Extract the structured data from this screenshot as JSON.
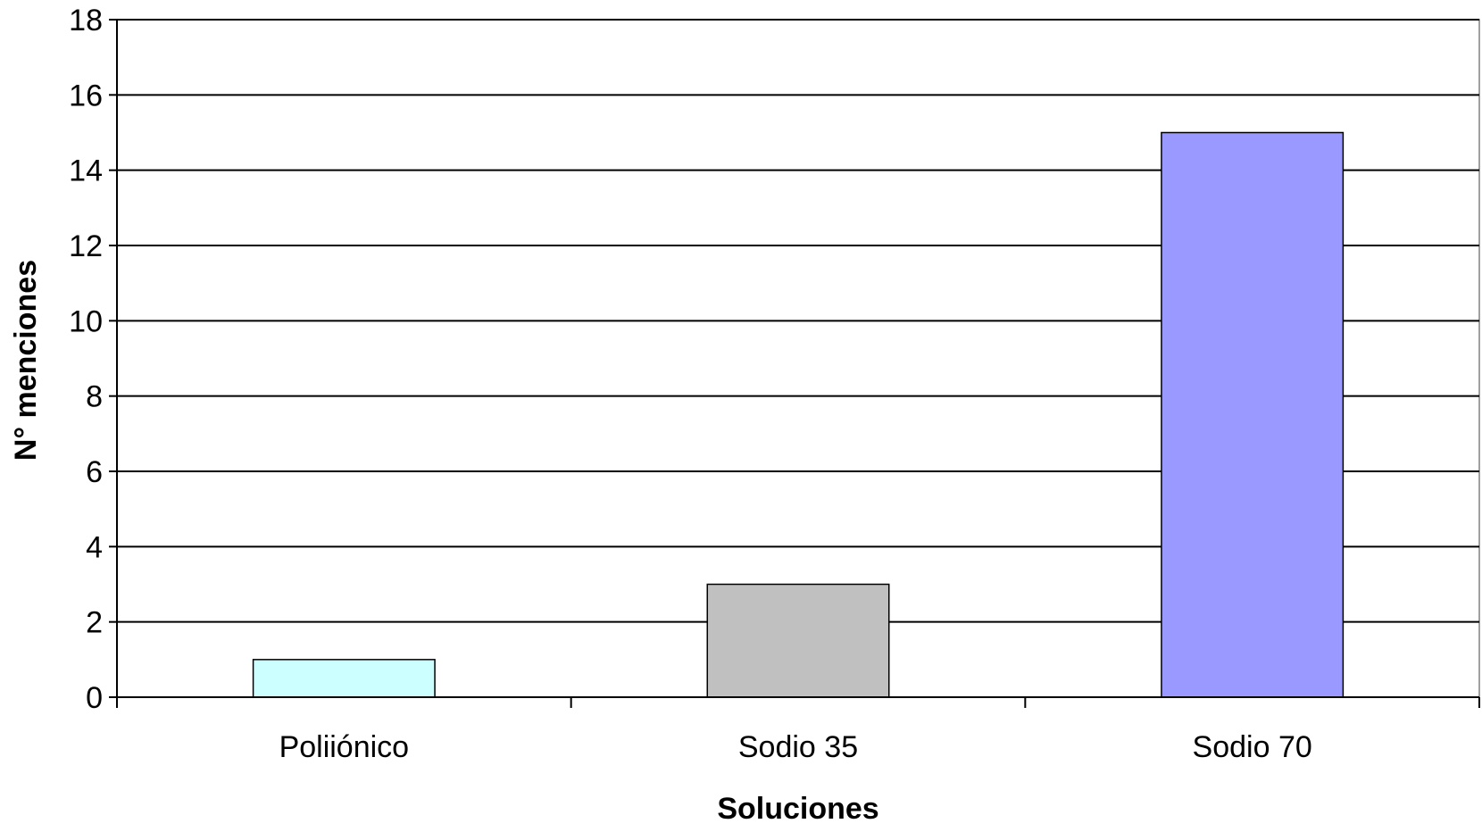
{
  "chart_data": {
    "type": "bar",
    "title": "",
    "xlabel": "Soluciones",
    "ylabel": "N° menciones",
    "categories": [
      "Poliiónico",
      "Sodio 35",
      "Sodio 70"
    ],
    "values": [
      1,
      3,
      15
    ],
    "bar_colors": [
      "#ccffff",
      "#c0c0c0",
      "#9999ff"
    ],
    "ylim": [
      0,
      18
    ],
    "yticks": [
      0,
      2,
      4,
      6,
      8,
      10,
      12,
      14,
      16,
      18
    ],
    "ytick_labels": [
      "0",
      "2",
      "4",
      "6",
      "8",
      "10",
      "12",
      "14",
      "16",
      "18"
    ],
    "grid": true,
    "legend": "none"
  }
}
